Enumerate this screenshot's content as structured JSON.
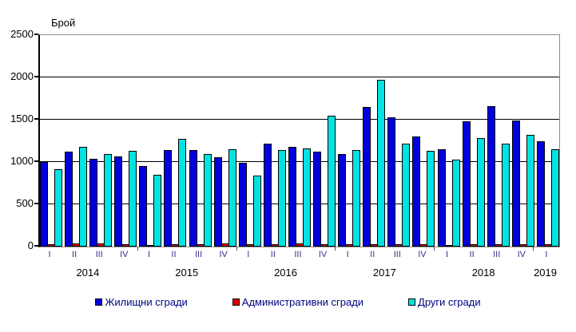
{
  "figure": {
    "ylabel": "Брой"
  },
  "chart_data": {
    "type": "bar",
    "title": "",
    "xlabel": "",
    "ylabel": "Брой",
    "ylim": [
      0,
      2500
    ],
    "yticks": [
      0,
      500,
      1000,
      1500,
      2000,
      2500
    ],
    "grid": true,
    "legend_position": "bottom",
    "categories": [
      "I",
      "II",
      "III",
      "IV",
      "I",
      "II",
      "III",
      "IV",
      "I",
      "II",
      "III",
      "IV",
      "I",
      "II",
      "III",
      "IV",
      "I",
      "II",
      "III",
      "IV",
      "I"
    ],
    "years": [
      {
        "label": "2014",
        "quarters": 4
      },
      {
        "label": "2015",
        "quarters": 4
      },
      {
        "label": "2016",
        "quarters": 4
      },
      {
        "label": "2017",
        "quarters": 4
      },
      {
        "label": "2018",
        "quarters": 4
      },
      {
        "label": "2019",
        "quarters": 1
      }
    ],
    "series": [
      {
        "name": "Жилищни сгради",
        "color": "#0000dd",
        "values": [
          1000,
          1120,
          1035,
          1065,
          950,
          1140,
          1145,
          1060,
          990,
          1215,
          1175,
          1120,
          1090,
          1655,
          1530,
          1300,
          1150,
          1485,
          1660,
          1490,
          1245
        ]
      },
      {
        "name": "Административни сгради",
        "color": "#dd0000",
        "values": [
          30,
          40,
          40,
          30,
          15,
          30,
          30,
          40,
          30,
          25,
          35,
          30,
          25,
          30,
          30,
          25,
          20,
          25,
          30,
          30,
          30
        ]
      },
      {
        "name": "Други сгради",
        "color": "#00e3e3",
        "values": [
          915,
          1175,
          1090,
          1135,
          845,
          1275,
          1095,
          1150,
          835,
          1145,
          1165,
          1545,
          1140,
          1975,
          1220,
          1135,
          1030,
          1285,
          1215,
          1325,
          1150
        ]
      }
    ]
  }
}
